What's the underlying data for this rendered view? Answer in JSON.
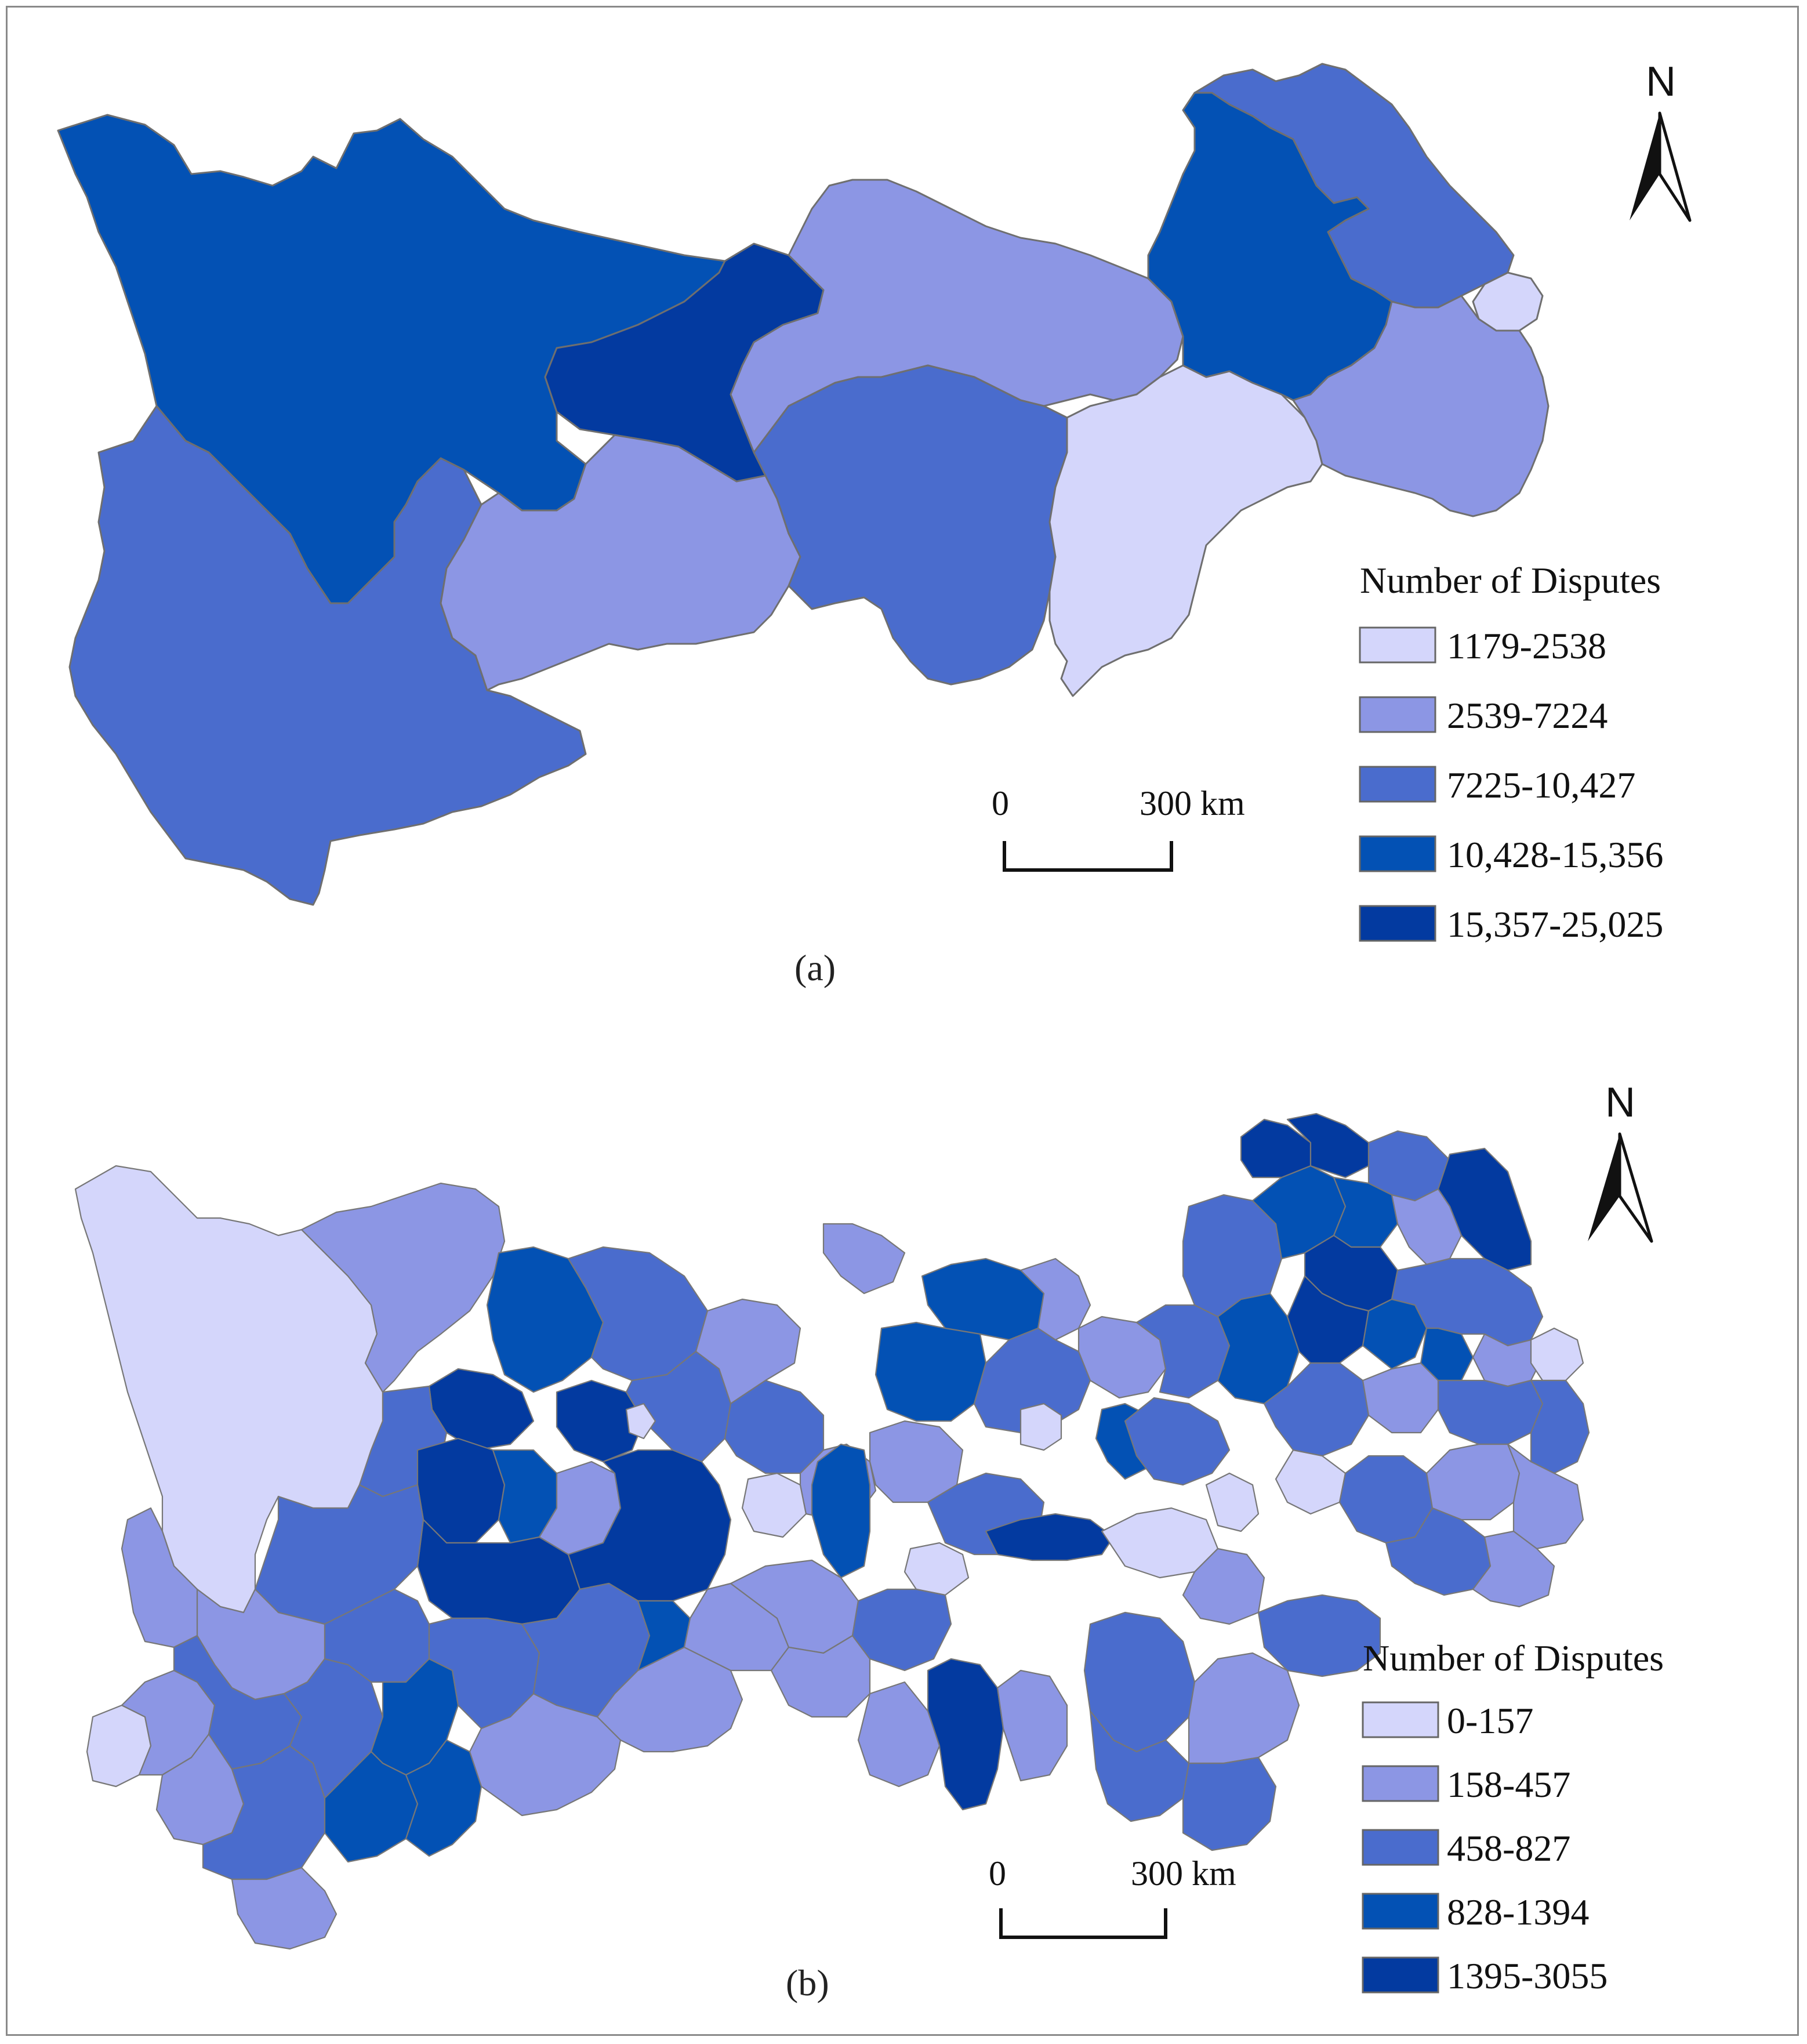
{
  "palette": [
    "#d4d6fb",
    "#8c96e4",
    "#4a6ccd",
    "#0351b4",
    "#033aa0"
  ],
  "panel_a": {
    "label": "(a)",
    "legend": {
      "title": "Number of Disputes",
      "classes": [
        {
          "label": "1179-2538",
          "color": "#d4d6fb"
        },
        {
          "label": "2539-7224",
          "color": "#8c96e4"
        },
        {
          "label": "7225-10,427",
          "color": "#4a6ccd"
        },
        {
          "label": "10,428-15,356",
          "color": "#0351b4"
        },
        {
          "label": "15,357-25,025",
          "color": "#033aa0"
        }
      ]
    },
    "scale_bar": {
      "start": "0",
      "end": "300 km"
    },
    "north": "N"
  },
  "panel_b": {
    "label": "(b)",
    "legend": {
      "title": "Number of Disputes",
      "classes": [
        {
          "label": "0-157",
          "color": "#d4d6fb"
        },
        {
          "label": "158-457",
          "color": "#8c96e4"
        },
        {
          "label": "458-827",
          "color": "#4a6ccd"
        },
        {
          "label": "828-1394",
          "color": "#0351b4"
        },
        {
          "label": "1395-3055",
          "color": "#033aa0"
        }
      ]
    },
    "scale_bar": {
      "start": "0",
      "end": "300 km"
    },
    "north": "N"
  }
}
